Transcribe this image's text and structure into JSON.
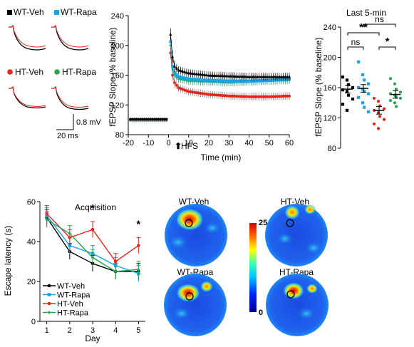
{
  "figure": {
    "legend_top": [
      "WT-Veh",
      "WT-Rapa",
      "HT-Veh",
      "HT-Rapa"
    ],
    "scale_bar": {
      "amplitude": "0.8 mV",
      "time": "20 ms"
    },
    "colors": {
      "WT-Veh": "#000000",
      "WT-Rapa": "#1aa3e8",
      "HT-Veh": "#e8231e",
      "HT-Rapa": "#22a84a"
    }
  },
  "chart_data": [
    {
      "id": "time_course",
      "type": "line",
      "xlabel": "Time (min)",
      "ylabel": "fEPSP Slope (% baseline)",
      "xlim": [
        -20,
        60
      ],
      "ylim": [
        80,
        240
      ],
      "xticks": [
        -20,
        -10,
        0,
        10,
        20,
        30,
        40,
        50,
        60
      ],
      "yticks": [
        80,
        120,
        160,
        200,
        240
      ],
      "annotation": "HFS",
      "baseline": 100,
      "series": [
        {
          "name": "WT-Veh",
          "x": [
            1,
            2,
            3,
            5,
            10,
            20,
            30,
            40,
            50,
            60
          ],
          "y": [
            215,
            185,
            172,
            167,
            163,
            160,
            159,
            158,
            158,
            158
          ]
        },
        {
          "name": "WT-Rapa",
          "x": [
            1,
            2,
            3,
            5,
            10,
            20,
            30,
            40,
            50,
            60
          ],
          "y": [
            205,
            172,
            163,
            158,
            155,
            153,
            152,
            152,
            153,
            155
          ]
        },
        {
          "name": "HT-Veh",
          "x": [
            1,
            2,
            3,
            5,
            10,
            20,
            30,
            40,
            50,
            60
          ],
          "y": [
            190,
            160,
            150,
            143,
            138,
            134,
            132,
            131,
            131,
            132
          ]
        },
        {
          "name": "HT-Rapa",
          "x": [
            1,
            2,
            3,
            5,
            10,
            20,
            30,
            40,
            50,
            60
          ],
          "y": [
            200,
            168,
            160,
            155,
            152,
            151,
            150,
            151,
            152,
            153
          ]
        }
      ]
    },
    {
      "id": "last5",
      "type": "scatter",
      "title": "Last 5-min",
      "ylabel": "fEPSP Slope (% baseline)",
      "ylim": [
        80,
        240
      ],
      "yticks": [
        80,
        120,
        160,
        200,
        240
      ],
      "categories": [
        "WT-Veh",
        "WT-Rapa",
        "HT-Veh",
        "HT-Rapa"
      ],
      "means": [
        158,
        159,
        130,
        151
      ],
      "points": [
        [
          174,
          170,
          164,
          160,
          157,
          155,
          150,
          145,
          138,
          130
        ],
        [
          194,
          177,
          170,
          165,
          160,
          158,
          155,
          152,
          147,
          140,
          134,
          128
        ],
        [
          146,
          142,
          136,
          132,
          130,
          127,
          122,
          118,
          112,
          106
        ],
        [
          172,
          165,
          158,
          154,
          152,
          150,
          148,
          146,
          143,
          140,
          135
        ]
      ],
      "significance": [
        "**",
        "ns",
        "ns",
        "*"
      ]
    },
    {
      "id": "acquisition",
      "type": "line",
      "title": "Acquisition",
      "xlabel": "Day",
      "ylabel": "Escape latency (s)",
      "xlim": [
        0.7,
        5.3
      ],
      "ylim": [
        0,
        60
      ],
      "xticks": [
        1,
        2,
        3,
        4,
        5
      ],
      "yticks": [
        0,
        20,
        40,
        60
      ],
      "stars": [
        "*",
        "*"
      ],
      "star_days": [
        3,
        5
      ],
      "series": [
        {
          "name": "WT-Veh",
          "x": [
            1,
            2,
            3,
            4,
            5
          ],
          "y": [
            52,
            35,
            29,
            25,
            25
          ]
        },
        {
          "name": "WT-Rapa",
          "x": [
            1,
            2,
            3,
            4,
            5
          ],
          "y": [
            53,
            38,
            34,
            28,
            24
          ]
        },
        {
          "name": "HT-Veh",
          "x": [
            1,
            2,
            3,
            4,
            5
          ],
          "y": [
            54,
            42,
            46,
            30,
            38
          ]
        },
        {
          "name": "HT-Rapa",
          "x": [
            1,
            2,
            3,
            4,
            5
          ],
          "y": [
            51,
            44,
            32,
            25,
            26
          ]
        }
      ]
    }
  ],
  "heatmaps": {
    "labels": [
      "WT-Veh",
      "HT-Veh",
      "WT-Rapa",
      "HT-Rapa"
    ],
    "colorbar_max": "25",
    "colorbar_min": "0"
  }
}
